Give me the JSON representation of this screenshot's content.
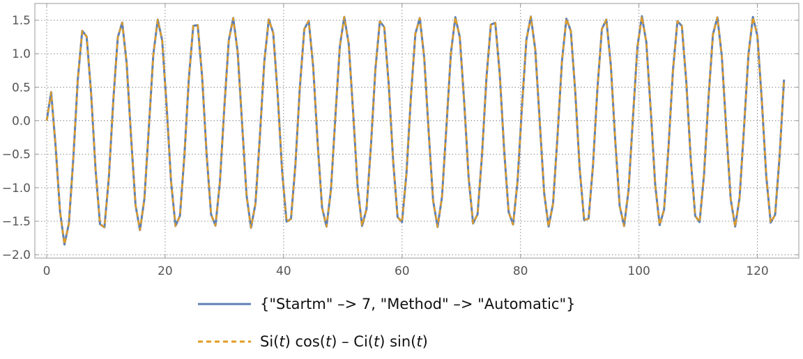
{
  "chart_data": {
    "type": "line",
    "title": "",
    "xlabel": "",
    "ylabel": "",
    "xlim": [
      -2,
      127
    ],
    "ylim": [
      -2.05,
      1.75
    ],
    "xticks": [
      0,
      20,
      40,
      60,
      80,
      100,
      120
    ],
    "yticks": [
      -2.0,
      -1.5,
      -1.0,
      -0.5,
      0.0,
      0.5,
      1.0,
      1.5
    ],
    "xtick_labels": [
      "0",
      "20",
      "40",
      "60",
      "80",
      "100",
      "120"
    ],
    "ytick_labels": [
      "−2.0",
      "−1.5",
      "−1.0",
      "−0.5",
      "0.0",
      "0.5",
      "1.0",
      "1.5"
    ],
    "grid": true,
    "grid_style": "dotted",
    "frame": "box",
    "legend_position": "bottom",
    "x_range": [
      0,
      125
    ],
    "sample_step": 0.75,
    "amplitude_range": [
      1.5,
      1.6
    ],
    "series": [
      {
        "name": "{\"Startm\" –> 7, \"Method\" –> \"Automatic\"}",
        "style": "solid",
        "color": "#5E81B5"
      },
      {
        "name_parts": [
          {
            "text": "Si(",
            "italic": false
          },
          {
            "text": "t",
            "italic": true
          },
          {
            "text": ") cos(",
            "italic": false
          },
          {
            "text": "t",
            "italic": true
          },
          {
            "text": ") – Ci(",
            "italic": false
          },
          {
            "text": "t",
            "italic": true
          },
          {
            "text": ") sin(",
            "italic": false
          },
          {
            "text": "t",
            "italic": true
          },
          {
            "text": ")",
            "italic": false
          }
        ],
        "style": "dashed",
        "color": "#E19C24"
      }
    ]
  },
  "colors": {
    "axis": "#999999",
    "grid": "#888888",
    "tick_text": "#555555"
  }
}
